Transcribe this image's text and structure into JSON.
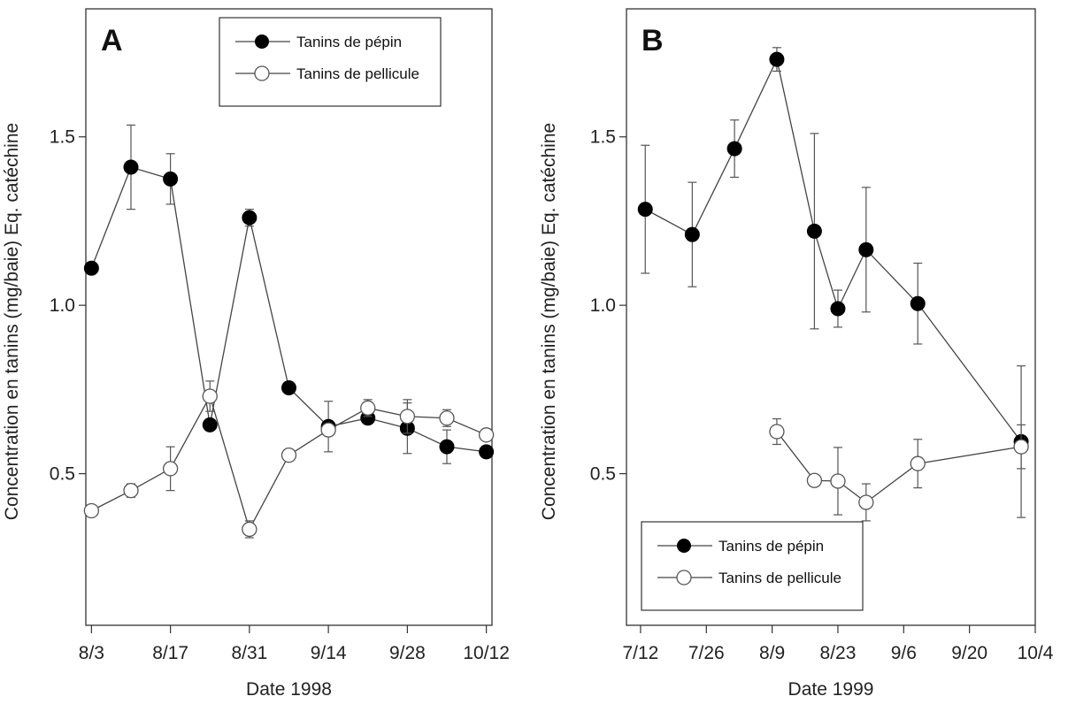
{
  "chart_data": [
    {
      "type": "line",
      "panel_label": "A",
      "xlabel": "Date 1998",
      "ylabel": "Concentration en tanins (mg/baie) Eq. catéchine",
      "x_ticks": [
        "8/3",
        "8/17",
        "8/31",
        "9/14",
        "9/28",
        "10/12"
      ],
      "x_range_days": [
        -1,
        71
      ],
      "y_ticks": [
        "0.5",
        "1.0",
        "1.5"
      ],
      "ylim": [
        0.05,
        1.88
      ],
      "legend_position": "top-right",
      "series": [
        {
          "name": "Tanins de pépin",
          "marker": "filled-circle",
          "x": [
            "8/3",
            "8/10",
            "8/17",
            "8/24",
            "8/31",
            "9/7",
            "9/14",
            "9/21",
            "9/28",
            "10/5",
            "10/12"
          ],
          "y": [
            1.11,
            1.41,
            1.375,
            0.645,
            1.26,
            0.755,
            0.64,
            0.665,
            0.635,
            0.58,
            0.565
          ],
          "err": [
            0,
            0.125,
            0.075,
            0,
            0.025,
            0,
            0.075,
            0,
            0.075,
            0.05,
            0
          ]
        },
        {
          "name": "Tanins de pellicule",
          "marker": "open-circle",
          "x": [
            "8/3",
            "8/10",
            "8/17",
            "8/24",
            "8/31",
            "9/7",
            "9/14",
            "9/21",
            "9/28",
            "10/5",
            "10/12"
          ],
          "y": [
            0.39,
            0.45,
            0.515,
            0.73,
            0.335,
            0.555,
            0.63,
            0.695,
            0.67,
            0.665,
            0.615
          ],
          "err": [
            0,
            0.02,
            0.065,
            0.045,
            0.025,
            0,
            0,
            0.025,
            0.05,
            0.025,
            0
          ]
        }
      ]
    },
    {
      "type": "line",
      "panel_label": "B",
      "xlabel": "Date 1999",
      "ylabel": "Concentration en tanins (mg/baie) Eq. catéchine",
      "x_ticks": [
        "7/12",
        "7/26",
        "8/9",
        "8/23",
        "9/6",
        "9/20",
        "10/4"
      ],
      "x_range_days": [
        -3,
        84
      ],
      "y_ticks": [
        "0.5",
        "1.0",
        "1.5"
      ],
      "ylim": [
        0.05,
        1.88
      ],
      "legend_position": "bottom-left",
      "series": [
        {
          "name": "Tanins de pépin",
          "marker": "filled-circle",
          "x": [
            "7/13",
            "7/23",
            "8/1",
            "8/10",
            "8/18",
            "8/23",
            "8/29",
            "9/9",
            "10/1"
          ],
          "y": [
            1.285,
            1.21,
            1.465,
            1.73,
            1.22,
            0.99,
            1.165,
            1.005,
            0.595
          ],
          "err": [
            0.19,
            0.155,
            0.085,
            0.035,
            0.29,
            0.055,
            0.185,
            0.12,
            0.225
          ]
        },
        {
          "name": "Tanins de pellicule",
          "marker": "open-circle",
          "x": [
            "8/10",
            "8/18",
            "8/23",
            "8/29",
            "9/9",
            "10/1"
          ],
          "y": [
            0.625,
            0.48,
            0.478,
            0.415,
            0.53,
            0.58
          ],
          "err": [
            0.038,
            0,
            0.1,
            0.055,
            0.072,
            0.065
          ]
        }
      ]
    }
  ]
}
